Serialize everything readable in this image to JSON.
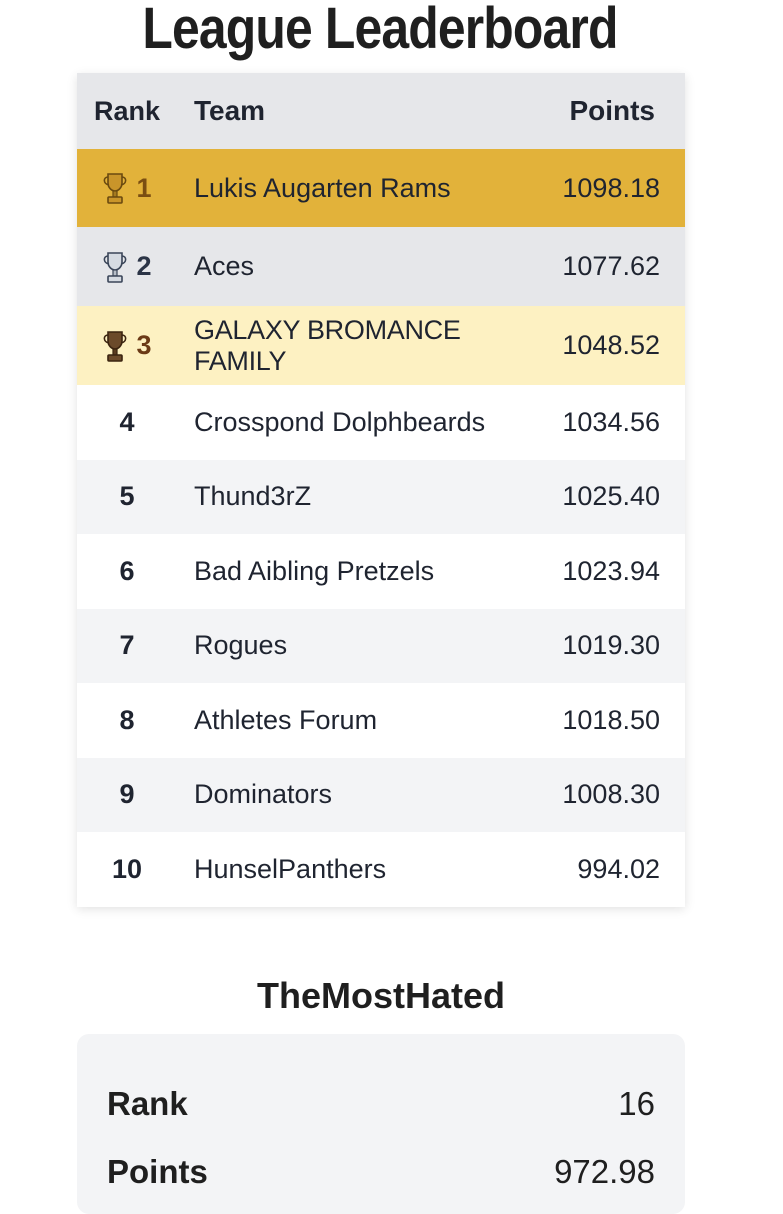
{
  "page": {
    "title": "League Leaderboard"
  },
  "table": {
    "headers": {
      "rank": "Rank",
      "team": "Team",
      "points": "Points"
    },
    "rows": [
      {
        "rank": "1",
        "team": "Lukis Augarten Rams",
        "points": "1098.18",
        "trophy": "gold-trophy-icon"
      },
      {
        "rank": "2",
        "team": "Aces",
        "points": "1077.62",
        "trophy": "silver-trophy-icon"
      },
      {
        "rank": "3",
        "team": "GALAXY BROMANCE FAMILY",
        "points": "1048.52",
        "trophy": "bronze-trophy-icon"
      },
      {
        "rank": "4",
        "team": "Crosspond Dolphbeards",
        "points": "1034.56"
      },
      {
        "rank": "5",
        "team": "Thund3rZ",
        "points": "1025.40"
      },
      {
        "rank": "6",
        "team": "Bad Aibling Pretzels",
        "points": "1023.94"
      },
      {
        "rank": "7",
        "team": "Rogues",
        "points": "1019.30"
      },
      {
        "rank": "8",
        "team": "Athletes Forum",
        "points": "1018.50"
      },
      {
        "rank": "9",
        "team": "Dominators",
        "points": "1008.30"
      },
      {
        "rank": "10",
        "team": "HunselPanthers",
        "points": "994.02"
      }
    ]
  },
  "summary": {
    "team_name": "TheMostHated",
    "rank_label": "Rank",
    "rank_value": "16",
    "points_label": "Points",
    "points_value": "972.98"
  },
  "colors": {
    "first_row": "#e2b23a",
    "second_row": "#e6e7ea",
    "third_row": "#fdf1c2",
    "header": "#e6e7ea",
    "stripe": "#f3f4f6"
  }
}
